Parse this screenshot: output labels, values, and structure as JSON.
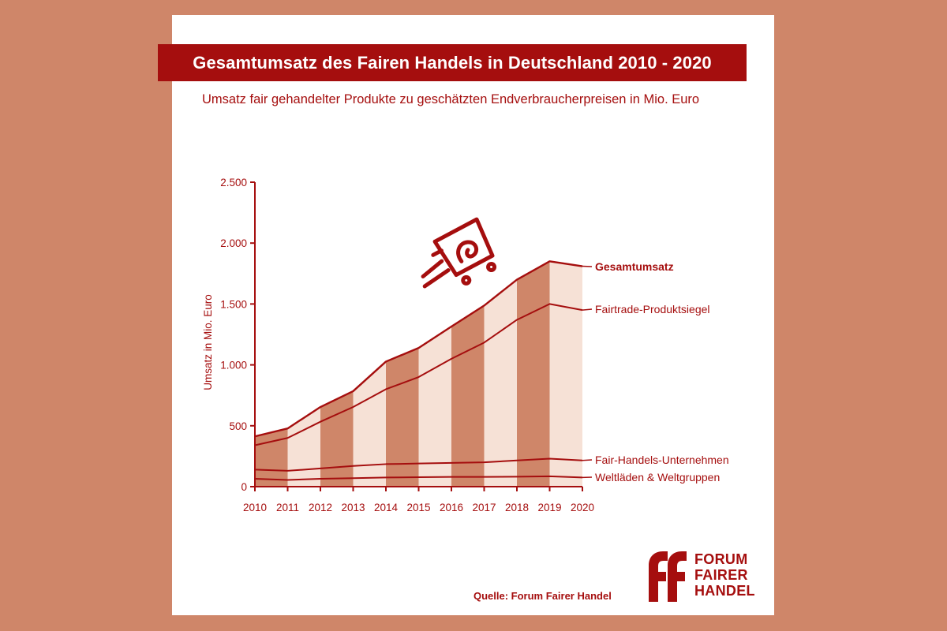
{
  "title": "Gesamtumsatz des Fairen Handels in Deutschland 2010 - 2020",
  "subtitle": "Umsatz fair gehandelter Produkte zu geschätzten Endverbraucherpreisen in Mio. Euro",
  "source": "Quelle: Forum Fairer Handel",
  "logo": {
    "lines": [
      "FORUM",
      "FAIRER",
      "HANDEL"
    ],
    "mark": "ff"
  },
  "colors": {
    "background": "#cf8669",
    "card": "#ffffff",
    "accent": "#a50e0e",
    "band_dark": "#cf8669",
    "band_light": "#f6e1d6"
  },
  "chart_data": {
    "type": "area",
    "ylabel": "Umsatz in Mio. Euro",
    "ylim": [
      0,
      2500
    ],
    "yticks": [
      0,
      500,
      1000,
      1500,
      2000,
      2500
    ],
    "ytick_labels": [
      "0",
      "500",
      "1.000",
      "1.500",
      "2.000",
      "2.500"
    ],
    "x": [
      "2010",
      "2011",
      "2012",
      "2013",
      "2014",
      "2015",
      "2016",
      "2017",
      "2018",
      "2019",
      "2020"
    ],
    "series": [
      {
        "name": "Gesamtumsatz",
        "values": [
          413,
          478,
          654,
          784,
          1027,
          1139,
          1315,
          1487,
          1700,
          1850,
          1810
        ]
      },
      {
        "name": "Fairtrade-Produktsiegel",
        "values": [
          340,
          400,
          533,
          654,
          800,
          900,
          1050,
          1183,
          1370,
          1500,
          1450
        ]
      },
      {
        "name": "Fair-Handels-Unternehmen",
        "values": [
          140,
          130,
          150,
          170,
          185,
          190,
          195,
          200,
          215,
          230,
          215
        ]
      },
      {
        "name": "Weltläden & Weltgruppen",
        "values": [
          65,
          55,
          65,
          70,
          75,
          78,
          80,
          80,
          82,
          85,
          75
        ]
      }
    ]
  }
}
